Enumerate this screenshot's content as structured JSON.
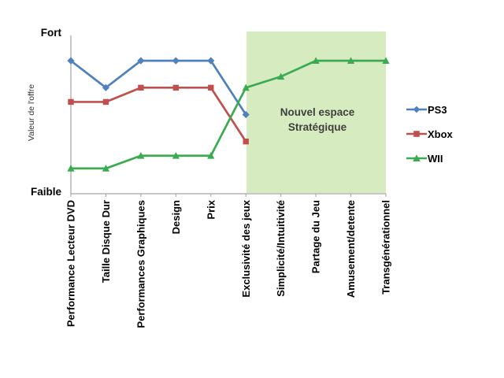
{
  "chart_data": {
    "type": "line",
    "title": "",
    "xlabel": "",
    "ylabel": "Valeur de l'offre",
    "y_tick_labels": {
      "top": "Fort",
      "bottom": "Faible"
    },
    "ylim": [
      0,
      10
    ],
    "grid": false,
    "legend_position": "right",
    "categories": [
      "Performance Lecteur DVD",
      "Taille Disque Dur",
      "Performances Graphiques",
      "Design",
      "Prix",
      "Exclusivité des jeux",
      "Simplicité/Intuitivité",
      "Partage du Jeu",
      "Amusement/detente",
      "Transgénérationnel"
    ],
    "series": [
      {
        "name": "PS3",
        "color": "#4f81bd",
        "marker": "diamond",
        "values": [
          8.4,
          6.7,
          8.4,
          8.4,
          8.4,
          5.0,
          null,
          null,
          null,
          null
        ]
      },
      {
        "name": "Xbox",
        "color": "#c0504d",
        "marker": "square",
        "values": [
          5.8,
          5.8,
          6.7,
          6.7,
          6.7,
          3.3,
          null,
          null,
          null,
          null
        ]
      },
      {
        "name": "WII",
        "color": "#3aab50",
        "marker": "triangle",
        "values": [
          1.6,
          1.6,
          2.4,
          2.4,
          2.4,
          6.7,
          7.4,
          8.4,
          8.4,
          8.4
        ]
      }
    ],
    "annotation": {
      "text": "Nouvel espace Stratégique",
      "region_from": "Exclusivité des jeux",
      "region_to": "Transgénérationnel",
      "region_color": "#d7ebc0"
    },
    "axis_color": "#a3a3a3"
  }
}
